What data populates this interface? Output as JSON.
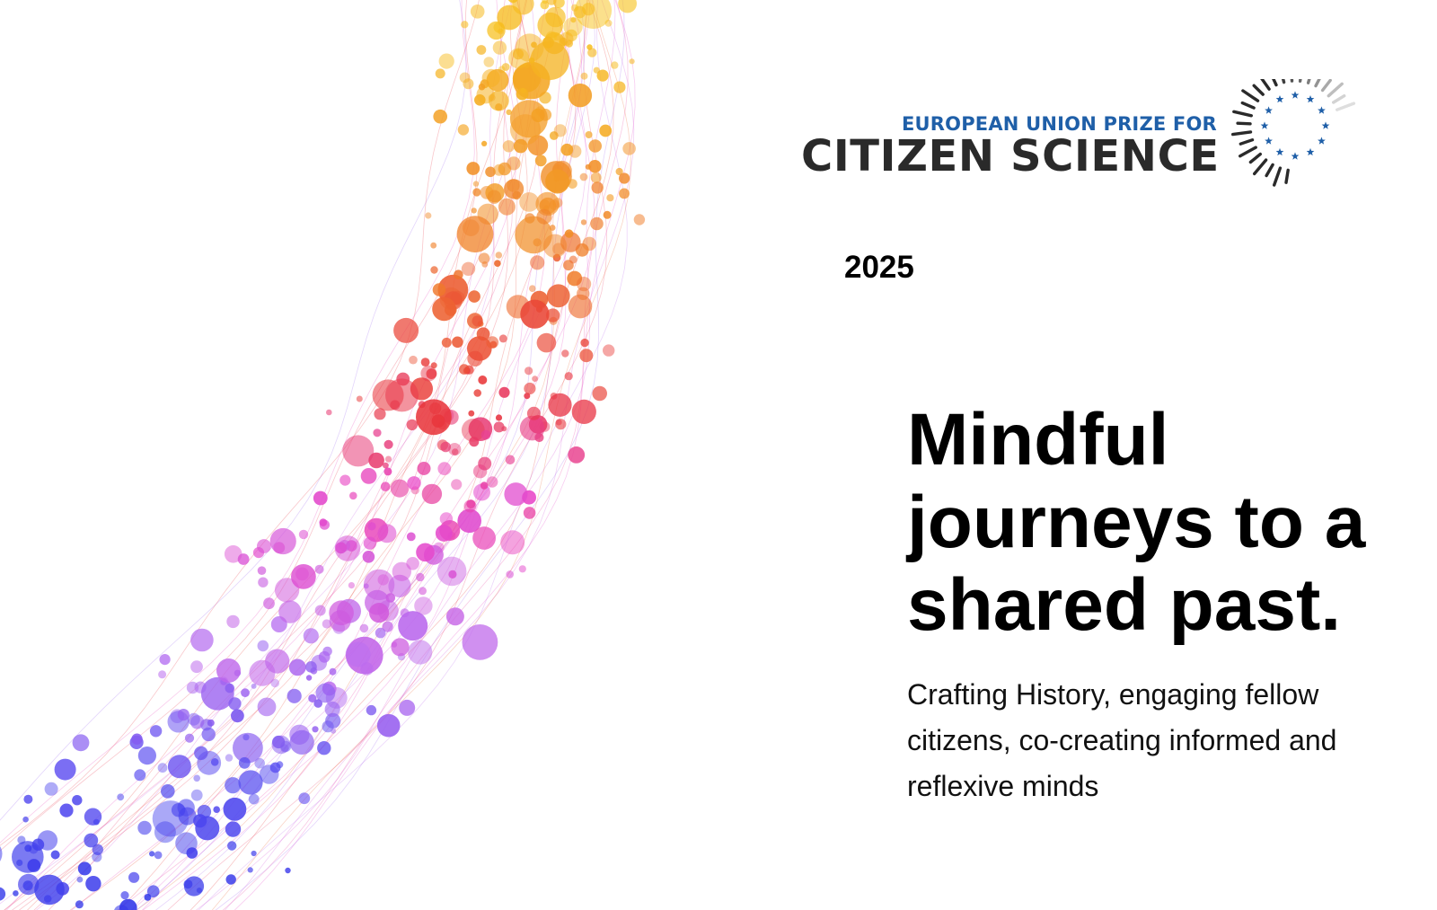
{
  "logo": {
    "line1": "EUROPEAN UNION PRIZE FOR",
    "line2": "CITIZEN SCIENCE",
    "emblem_icon": "eu-stars-sunburst-icon",
    "star_color": "#1f5fa8",
    "text_color": "#2a2a2a"
  },
  "year": "2025",
  "headline": {
    "line1": "Mindful",
    "line2": "journeys to a",
    "line3": "shared past."
  },
  "subtitle": {
    "line1": "Crafting History, engaging fellow",
    "line2": "citizens, co-creating informed and",
    "line3": "reflexive minds"
  },
  "artwork": {
    "icon": "colorful-particle-stream",
    "palette": [
      "#f7c21e",
      "#f4a623",
      "#ef7a2c",
      "#e8363c",
      "#e844c8",
      "#b86cf0",
      "#5a4ff0",
      "#2a30e8"
    ]
  }
}
